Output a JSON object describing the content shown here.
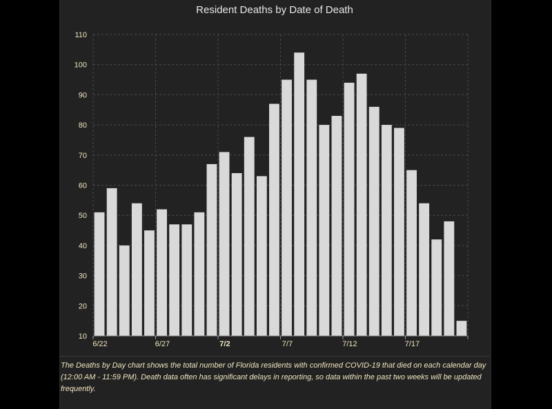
{
  "chart_data": {
    "type": "bar",
    "title": "Resident Deaths by Date of Death",
    "xlabel": "",
    "ylabel": "",
    "ylim": [
      10,
      110
    ],
    "y_ticks": [
      10,
      20,
      30,
      40,
      50,
      60,
      70,
      80,
      90,
      100,
      110
    ],
    "x_tick_labels": [
      {
        "index": 0,
        "label": "6/22",
        "bold": false
      },
      {
        "index": 5,
        "label": "6/27",
        "bold": false
      },
      {
        "index": 10,
        "label": "7/2",
        "bold": true
      },
      {
        "index": 15,
        "label": "7/7",
        "bold": false
      },
      {
        "index": 20,
        "label": "7/12",
        "bold": false
      },
      {
        "index": 25,
        "label": "7/17",
        "bold": false
      }
    ],
    "categories": [
      "6/22",
      "6/23",
      "6/24",
      "6/25",
      "6/26",
      "6/27",
      "6/28",
      "6/29",
      "6/30",
      "7/1",
      "7/2",
      "7/3",
      "7/4",
      "7/5",
      "7/6",
      "7/7",
      "7/8",
      "7/9",
      "7/10",
      "7/11",
      "7/12",
      "7/13",
      "7/14",
      "7/15",
      "7/16",
      "7/17",
      "7/18",
      "7/19",
      "7/20",
      "7/21"
    ],
    "values": [
      51,
      59,
      40,
      54,
      45,
      52,
      47,
      47,
      51,
      67,
      71,
      64,
      76,
      63,
      87,
      95,
      104,
      95,
      80,
      83,
      94,
      97,
      86,
      80,
      79,
      65,
      54,
      42,
      48,
      15
    ],
    "grid": true,
    "colors": {
      "bar": "#d9d9d9",
      "grid": "#4a4a4a",
      "tick_text": "#f0e6c0"
    }
  },
  "description": "The Deaths by Day chart shows the total number of Florida residents with confirmed COVID-19 that died on each calendar day (12:00 AM - 11:59 PM). Death data often has significant delays in reporting, so data within the past two weeks will be updated frequently."
}
